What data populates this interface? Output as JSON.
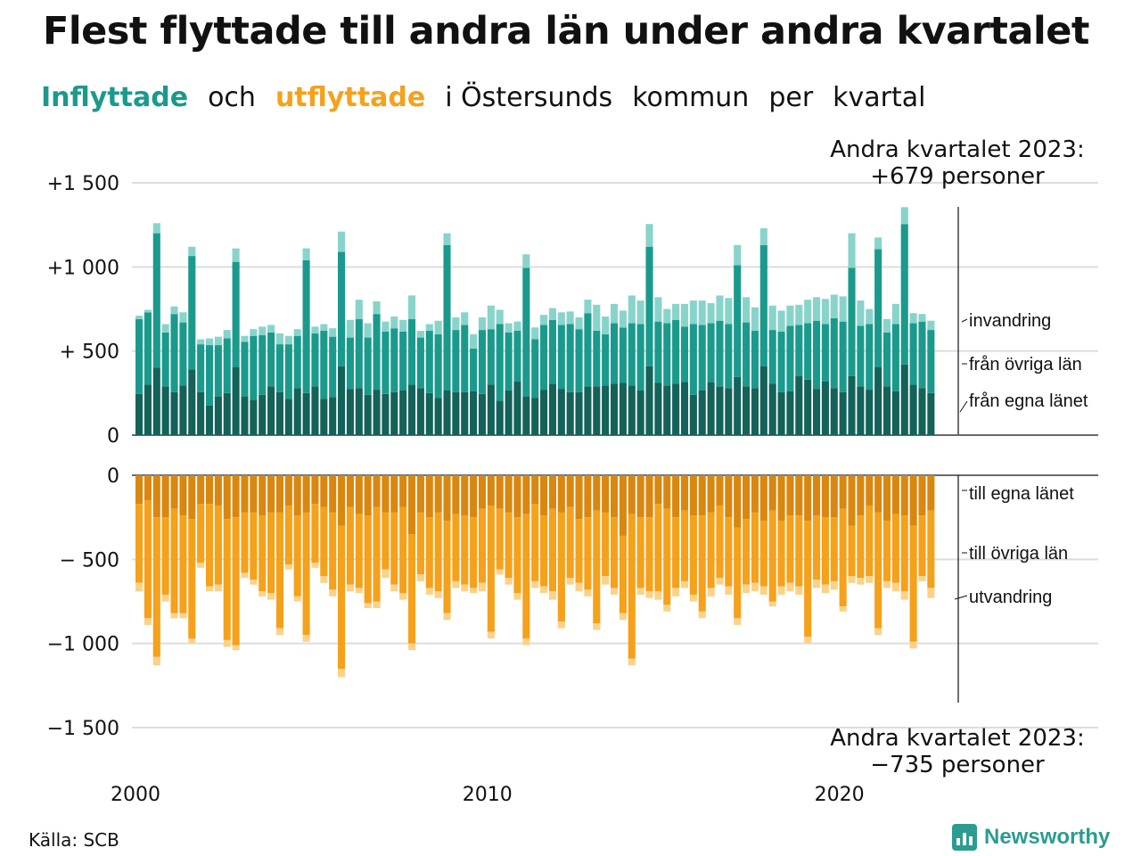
{
  "title": "Flest flyttade till andra län under andra kvartalet",
  "subtitle": {
    "part1": "Inflyttade",
    "part2": "och",
    "part3": "utflyttade",
    "part4": "i Östersunds",
    "part5": "kommun",
    "part6": "per",
    "part7": "kvartal"
  },
  "annotation_top": {
    "line1": "Andra kvartalet 2023:",
    "line2": "+679 personer"
  },
  "annotation_bottom": {
    "line1": "Andra kvartalet 2023:",
    "line2": "−735 personer"
  },
  "source": "Källa: SCB",
  "logo": {
    "text": "Newsworthy",
    "icon": "bar-chart-speech-icon"
  },
  "colors": {
    "in_own": "#14625a",
    "in_other": "#1a9a8c",
    "in_immig": "#88d4cb",
    "out_own": "#d98710",
    "out_other": "#f5a11b",
    "out_emig": "#fbd28a",
    "grid": "#dddddd",
    "axis": "#111111"
  },
  "chart_data": [
    {
      "type": "bar",
      "stacked": true,
      "x_start": "2000 Q1",
      "x_ticks": [
        "2000",
        "2010",
        "2020"
      ],
      "y_ticks": [
        "+1 500",
        "+1 000",
        "+ 500",
        "0"
      ],
      "ylim": [
        0,
        1500
      ],
      "series": [
        {
          "name": "från egna länet",
          "values": [
            245,
            300,
            400,
            290,
            255,
            295,
            390,
            255,
            175,
            230,
            250,
            405,
            230,
            210,
            240,
            290,
            255,
            215,
            280,
            250,
            290,
            215,
            225,
            410,
            275,
            280,
            240,
            270,
            245,
            255,
            265,
            300,
            280,
            250,
            220,
            265,
            255,
            255,
            260,
            245,
            300,
            205,
            265,
            320,
            230,
            220,
            270,
            305,
            275,
            255,
            255,
            290,
            290,
            295,
            305,
            310,
            295,
            265,
            410,
            310,
            295,
            305,
            315,
            240,
            265,
            315,
            290,
            280,
            345,
            290,
            280,
            410,
            305,
            255,
            260,
            350,
            330,
            275,
            320,
            280,
            255,
            350,
            290,
            270,
            405,
            290,
            260,
            420,
            300,
            280,
            250
          ]
        },
        {
          "name": "från övriga län",
          "values": [
            445,
            430,
            800,
            320,
            465,
            375,
            675,
            285,
            360,
            305,
            325,
            625,
            325,
            380,
            355,
            320,
            285,
            325,
            310,
            790,
            315,
            405,
            360,
            680,
            305,
            410,
            340,
            450,
            370,
            380,
            350,
            390,
            300,
            370,
            380,
            865,
            370,
            400,
            255,
            380,
            330,
            455,
            345,
            300,
            765,
            350,
            385,
            380,
            380,
            405,
            375,
            435,
            330,
            305,
            360,
            330,
            370,
            395,
            710,
            365,
            370,
            380,
            330,
            420,
            390,
            350,
            390,
            380,
            665,
            380,
            340,
            720,
            320,
            360,
            390,
            305,
            335,
            405,
            340,
            415,
            420,
            645,
            360,
            390,
            700,
            320,
            400,
            835,
            365,
            395,
            375
          ]
        },
        {
          "name": "invandring",
          "values": [
            20,
            15,
            60,
            50,
            45,
            60,
            55,
            30,
            40,
            50,
            50,
            80,
            35,
            40,
            50,
            45,
            65,
            50,
            40,
            70,
            40,
            40,
            50,
            120,
            105,
            115,
            85,
            75,
            60,
            70,
            70,
            140,
            40,
            40,
            80,
            70,
            75,
            75,
            85,
            75,
            140,
            85,
            55,
            55,
            80,
            70,
            60,
            70,
            75,
            75,
            70,
            80,
            155,
            105,
            115,
            100,
            165,
            140,
            135,
            145,
            85,
            95,
            135,
            140,
            145,
            120,
            150,
            155,
            120,
            150,
            140,
            100,
            145,
            125,
            120,
            120,
            140,
            140,
            150,
            140,
            150,
            205,
            150,
            90,
            70,
            80,
            120,
            100,
            60,
            45,
            55
          ]
        }
      ]
    },
    {
      "type": "bar",
      "stacked": true,
      "direction": "negative",
      "x_start": "2000 Q1",
      "x_ticks": [
        "2000",
        "2010",
        "2020"
      ],
      "y_ticks": [
        "0",
        "− 500",
        "−1 000",
        "−1 500"
      ],
      "ylim": [
        -1500,
        0
      ],
      "series": [
        {
          "name": "till egna länet",
          "values": [
            -170,
            -150,
            -250,
            -250,
            -200,
            -240,
            -260,
            -170,
            -170,
            -180,
            -260,
            -250,
            -220,
            -220,
            -240,
            -220,
            -220,
            -180,
            -240,
            -220,
            -170,
            -190,
            -220,
            -300,
            -190,
            -230,
            -240,
            -190,
            -220,
            -220,
            -190,
            -350,
            -220,
            -250,
            -220,
            -270,
            -230,
            -240,
            -250,
            -200,
            -180,
            -200,
            -220,
            -250,
            -230,
            -170,
            -240,
            -200,
            -220,
            -190,
            -260,
            -250,
            -210,
            -220,
            -250,
            -360,
            -230,
            -250,
            -250,
            -170,
            -200,
            -250,
            -210,
            -240,
            -240,
            -220,
            -180,
            -250,
            -310,
            -260,
            -220,
            -270,
            -210,
            -270,
            -240,
            -240,
            -270,
            -240,
            -250,
            -250,
            -200,
            -300,
            -240,
            -180,
            -220,
            -270,
            -230,
            -240,
            -300,
            -240,
            -210
          ]
        },
        {
          "name": "till övriga län",
          "values": [
            -470,
            -700,
            -830,
            -460,
            -620,
            -580,
            -710,
            -350,
            -490,
            -470,
            -720,
            -760,
            -360,
            -400,
            -450,
            -480,
            -690,
            -350,
            -480,
            -730,
            -350,
            -410,
            -460,
            -850,
            -460,
            -440,
            -520,
            -560,
            -340,
            -430,
            -510,
            -650,
            -370,
            -420,
            -470,
            -550,
            -400,
            -410,
            -420,
            -440,
            -750,
            -360,
            -390,
            -450,
            -740,
            -460,
            -420,
            -490,
            -650,
            -420,
            -380,
            -430,
            -670,
            -380,
            -420,
            -460,
            -860,
            -420,
            -440,
            -520,
            -570,
            -420,
            -420,
            -470,
            -570,
            -450,
            -430,
            -410,
            -540,
            -390,
            -420,
            -390,
            -540,
            -390,
            -400,
            -420,
            -690,
            -380,
            -400,
            -380,
            -580,
            -300,
            -370,
            -420,
            -690,
            -360,
            -410,
            -450,
            -690,
            -360,
            -460
          ]
        },
        {
          "name": "utvandring",
          "values": [
            -50,
            -40,
            -50,
            -40,
            -30,
            -30,
            -30,
            -30,
            -30,
            -40,
            -40,
            -30,
            -30,
            -30,
            -30,
            -40,
            -40,
            -30,
            -30,
            -40,
            -30,
            -40,
            -40,
            -50,
            -40,
            -30,
            -30,
            -40,
            -50,
            -40,
            -40,
            -40,
            -40,
            -40,
            -40,
            -40,
            -40,
            -40,
            -30,
            -50,
            -40,
            -30,
            -40,
            -40,
            -40,
            -40,
            -40,
            -50,
            -40,
            -40,
            -50,
            -40,
            -40,
            -50,
            -40,
            -40,
            -40,
            -40,
            -40,
            -50,
            -40,
            -50,
            -40,
            -40,
            -40,
            -50,
            -40,
            -50,
            -40,
            -50,
            -50,
            -50,
            -30,
            -50,
            -50,
            -50,
            -40,
            -50,
            -50,
            -50,
            -30,
            -40,
            -40,
            -40,
            -40,
            -40,
            -50,
            -50,
            -40,
            -30,
            -60
          ]
        }
      ]
    }
  ],
  "legend_top": [
    "invandring",
    "från övriga län",
    "från egna länet"
  ],
  "legend_bottom": [
    "till egna länet",
    "till övriga län",
    "utvandring"
  ]
}
